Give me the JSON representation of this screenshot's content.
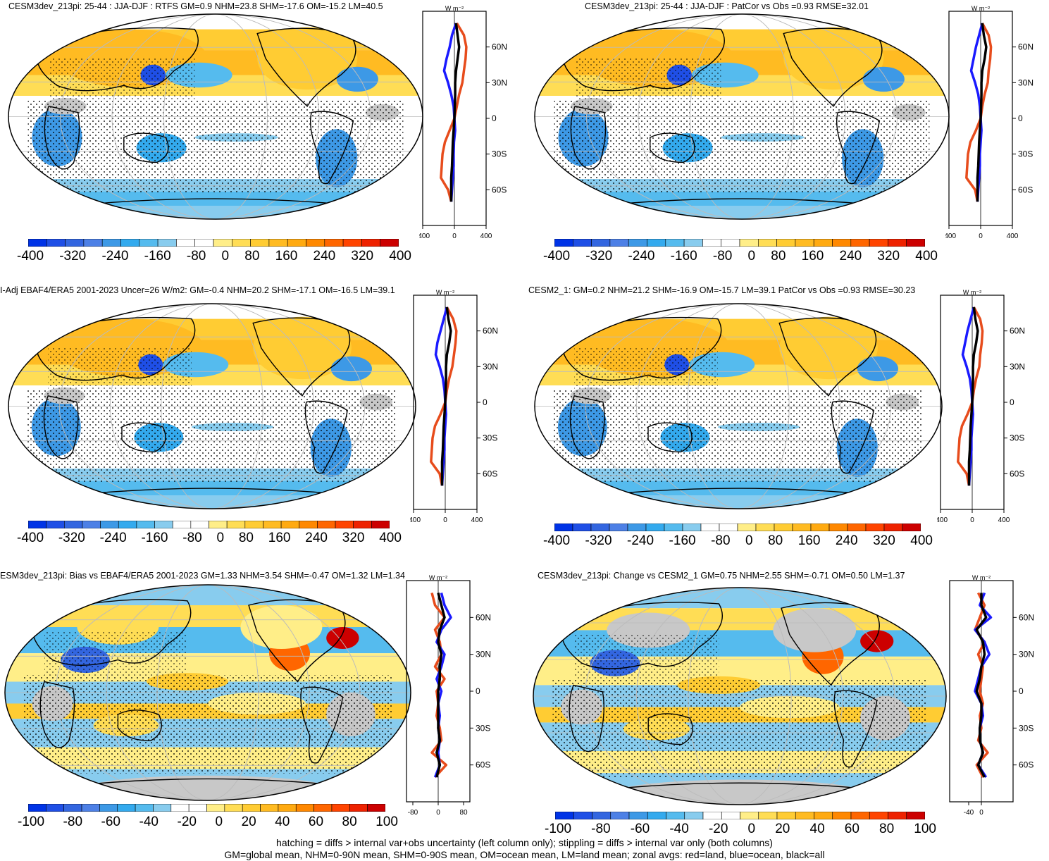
{
  "panels": [
    {
      "id": "p1",
      "title": "CESM3dev_213pi: 25-44 : JJA-DJF : RTFS GM=0.9 NHM=23.8 SHM=-17.6 OM=-15.2 LM=40.5",
      "units": "W m⁻²",
      "colorbar_ticks": [
        "-400",
        "-320",
        "-240",
        "-160",
        "-80",
        "0",
        "80",
        "160",
        "240",
        "320",
        "400"
      ],
      "zonal_xticks": [
        "-400",
        "0",
        "400"
      ],
      "lat_ticks": [
        "60N",
        "30N",
        "0",
        "30S",
        "60S"
      ]
    },
    {
      "id": "p2",
      "title": "CESM3dev_213pi: 25-44 : JJA-DJF : PatCor vs Obs =0.93 RMSE=32.01",
      "units": "W m⁻²",
      "colorbar_ticks": [
        "-400",
        "-320",
        "-240",
        "-160",
        "-80",
        "0",
        "80",
        "160",
        "240",
        "320",
        "400"
      ],
      "zonal_xticks": [
        "-400",
        "0",
        "400"
      ],
      "lat_ticks": [
        "60N",
        "30N",
        "0",
        "30S",
        "60S"
      ]
    },
    {
      "id": "p3",
      "title": "I-Adj EBAF4/ERA5 2001-2023 Uncer=26 W/m2: GM=-0.4 NHM=20.2 SHM=-17.1 OM=-16.5 LM=39.1",
      "units": "W m⁻²",
      "colorbar_ticks": [
        "-400",
        "-320",
        "-240",
        "-160",
        "-80",
        "0",
        "80",
        "160",
        "240",
        "320",
        "400"
      ],
      "zonal_xticks": [
        "-400",
        "0",
        "400"
      ],
      "lat_ticks": [
        "60N",
        "30N",
        "0",
        "30S",
        "60S"
      ]
    },
    {
      "id": "p4",
      "title": "CESM2_1: GM=0.2 NHM=21.2 SHM=-16.9 OM=-15.7 LM=39.1 PatCor vs Obs =0.93 RMSE=30.23",
      "units": "W m⁻²",
      "colorbar_ticks": [
        "-400",
        "-320",
        "-240",
        "-160",
        "-80",
        "0",
        "80",
        "160",
        "240",
        "320",
        "400"
      ],
      "zonal_xticks": [
        "-400",
        "0",
        "400"
      ],
      "lat_ticks": [
        "60N",
        "30N",
        "0",
        "30S",
        "60S"
      ]
    },
    {
      "id": "p5",
      "title": "ESM3dev_213pi: Bias vs EBAF4/ERA5 2001-2023 GM=1.33 NHM=3.54 SHM=-0.47 OM=1.32 LM=1.34",
      "units": "W m⁻²",
      "colorbar_ticks": [
        "-100",
        "-80",
        "-60",
        "-40",
        "-20",
        "0",
        "20",
        "40",
        "60",
        "80",
        "100"
      ],
      "zonal_xticks": [
        "-80",
        "0",
        "80"
      ],
      "lat_ticks": [
        "60N",
        "30N",
        "0",
        "30S",
        "60S"
      ]
    },
    {
      "id": "p6",
      "title": "CESM3dev_213pi: Change vs CESM2_1 GM=0.75 NHM=2.55 SHM=-0.71 OM=0.50 LM=1.37",
      "units": "W m⁻²",
      "colorbar_ticks": [
        "-100",
        "-80",
        "-60",
        "-40",
        "-20",
        "0",
        "20",
        "40",
        "60",
        "80",
        "100"
      ],
      "zonal_xticks": [
        "-40",
        "0"
      ],
      "lat_ticks": [
        "60N",
        "30N",
        "0",
        "30S",
        "60S"
      ]
    }
  ],
  "colors": {
    "palette": [
      "#0033e6",
      "#1f4fe6",
      "#3366e0",
      "#4d80e6",
      "#3d99e6",
      "#33aaee",
      "#55bbee",
      "#88ccee",
      "#ffffff",
      "#ffffff",
      "#ffee88",
      "#ffdd55",
      "#ffcc33",
      "#ffbb22",
      "#ffaa11",
      "#ff8800",
      "#ff6600",
      "#ff4400",
      "#ee2200",
      "#cc0000"
    ],
    "land_line": "#000000",
    "missing": "#c8c8c8",
    "land": "#e74c1c",
    "ocean": "#1a1aff",
    "all": "#000000"
  },
  "chart_data": [
    {
      "type": "heatmap",
      "title": "CESM3dev_213pi: 25-44 : JJA-DJF : RTFS GM=0.9 NHM=23.8 SHM=-17.6 OM=-15.2 LM=40.5",
      "colorbar_range": [
        -400,
        400
      ],
      "zonal_mean": {
        "lat": [
          80,
          70,
          60,
          50,
          40,
          30,
          20,
          10,
          0,
          -10,
          -20,
          -30,
          -40,
          -50,
          -60,
          -70
        ],
        "land": [
          30,
          120,
          150,
          140,
          120,
          100,
          60,
          30,
          0,
          -60,
          -120,
          -150,
          -160,
          -170,
          -80,
          -40
        ],
        "ocean": [
          20,
          -30,
          -60,
          -100,
          -130,
          -80,
          -40,
          -10,
          0,
          10,
          -5,
          -10,
          -10,
          -20,
          -30,
          -40
        ],
        "all": [
          20,
          40,
          60,
          40,
          20,
          10,
          10,
          5,
          0,
          -10,
          -20,
          -25,
          -30,
          -40,
          -40,
          -40
        ]
      }
    },
    {
      "type": "heatmap",
      "title": "CESM3dev_213pi: 25-44 : JJA-DJF : PatCor vs Obs =0.93 RMSE=32.01",
      "colorbar_range": [
        -400,
        400
      ],
      "zonal_mean": {
        "lat": [
          80,
          70,
          60,
          50,
          40,
          30,
          20,
          10,
          0,
          -10,
          -20,
          -30,
          -40,
          -50,
          -60,
          -70
        ],
        "land": [
          20,
          100,
          130,
          120,
          100,
          90,
          50,
          20,
          0,
          -60,
          -130,
          -160,
          -170,
          -180,
          -70,
          -40
        ],
        "ocean": [
          20,
          -20,
          -60,
          -90,
          -120,
          -70,
          -30,
          -10,
          0,
          10,
          0,
          -10,
          -10,
          -20,
          -30,
          -40
        ],
        "all": [
          20,
          40,
          70,
          50,
          20,
          10,
          10,
          5,
          0,
          -10,
          -20,
          -25,
          -30,
          -40,
          -40,
          -40
        ]
      }
    },
    {
      "type": "heatmap",
      "title": "I-Adj EBAF4/ERA5 2001-2023 Uncer=26 W/m2: GM=-0.4 NHM=20.2 SHM=-17.1 OM=-16.5 LM=39.1",
      "colorbar_range": [
        -400,
        400
      ],
      "zonal_mean": {
        "lat": [
          80,
          70,
          60,
          50,
          40,
          30,
          20,
          10,
          0,
          -10,
          -20,
          -30,
          -40,
          -50,
          -60,
          -70
        ],
        "land": [
          20,
          100,
          140,
          130,
          110,
          90,
          50,
          20,
          0,
          -60,
          -130,
          -160,
          -170,
          -180,
          -70,
          -40
        ],
        "ocean": [
          20,
          -20,
          -60,
          -100,
          -120,
          -70,
          -30,
          -10,
          0,
          10,
          0,
          -10,
          -10,
          -20,
          -30,
          -40
        ],
        "all": [
          20,
          40,
          70,
          50,
          20,
          10,
          10,
          5,
          0,
          -10,
          -20,
          -25,
          -30,
          -40,
          -40,
          -40
        ]
      }
    },
    {
      "type": "heatmap",
      "title": "CESM2_1: GM=0.2 NHM=21.2 SHM=-16.9 OM=-15.7 LM=39.1 PatCor vs Obs =0.93 RMSE=30.23",
      "colorbar_range": [
        -400,
        400
      ],
      "zonal_mean": {
        "lat": [
          80,
          70,
          60,
          50,
          40,
          30,
          20,
          10,
          0,
          -10,
          -20,
          -30,
          -40,
          -50,
          -60,
          -70
        ],
        "land": [
          20,
          100,
          130,
          120,
          100,
          90,
          50,
          20,
          0,
          -60,
          -130,
          -160,
          -170,
          -180,
          -70,
          -40
        ],
        "ocean": [
          20,
          -20,
          -60,
          -90,
          -120,
          -70,
          -30,
          -10,
          0,
          10,
          0,
          -10,
          -10,
          -20,
          -30,
          -40
        ],
        "all": [
          20,
          40,
          70,
          50,
          20,
          10,
          10,
          5,
          0,
          -10,
          -20,
          -25,
          -30,
          -40,
          -40,
          -40
        ]
      }
    },
    {
      "type": "heatmap",
      "title": "ESM3dev_213pi: Bias vs EBAF4/ERA5 2001-2023 GM=1.33 NHM=3.54 SHM=-0.47 OM=1.32 LM=1.34",
      "colorbar_range": [
        -100,
        100
      ],
      "zonal_mean": {
        "lat": [
          80,
          70,
          60,
          50,
          40,
          30,
          20,
          10,
          0,
          -10,
          -20,
          -30,
          -40,
          -50,
          -60,
          -70
        ],
        "land": [
          -20,
          -10,
          20,
          -10,
          5,
          10,
          -10,
          20,
          -5,
          0,
          -5,
          5,
          10,
          -20,
          25,
          -10
        ],
        "ocean": [
          10,
          20,
          40,
          10,
          -5,
          20,
          10,
          -5,
          10,
          0,
          5,
          0,
          5,
          0,
          5,
          -10
        ],
        "all": [
          0,
          10,
          20,
          5,
          0,
          10,
          5,
          5,
          0,
          0,
          0,
          0,
          5,
          -5,
          5,
          -5
        ]
      }
    },
    {
      "type": "heatmap",
      "title": "CESM3dev_213pi: Change vs CESM2_1 GM=0.75 NHM=2.55 SHM=-0.71 OM=0.50 LM=1.37",
      "colorbar_range": [
        -100,
        100
      ],
      "zonal_mean": {
        "lat": [
          80,
          70,
          60,
          50,
          40,
          30,
          20,
          10,
          0,
          -10,
          -20,
          -30,
          -40,
          -50,
          -60,
          -70
        ],
        "land": [
          -10,
          10,
          -5,
          -20,
          10,
          -10,
          5,
          0,
          -5,
          5,
          -5,
          0,
          -10,
          20,
          -15,
          5
        ],
        "ocean": [
          10,
          -5,
          30,
          -20,
          10,
          25,
          0,
          -10,
          -20,
          0,
          5,
          -5,
          -5,
          5,
          -10,
          15
        ],
        "all": [
          0,
          0,
          15,
          -15,
          5,
          10,
          0,
          -5,
          -15,
          0,
          0,
          -5,
          -5,
          5,
          -10,
          10
        ]
      }
    }
  ],
  "footnote": [
    "hatching = diffs > internal var+obs uncertainty (left column only); stippling = diffs > internal var only (both columns)",
    "GM=global mean, NHM=0-90N mean, SHM=0-90S mean, OM=ocean mean, LM=land mean; zonal avgs: red=land, blue=ocean, black=all"
  ]
}
